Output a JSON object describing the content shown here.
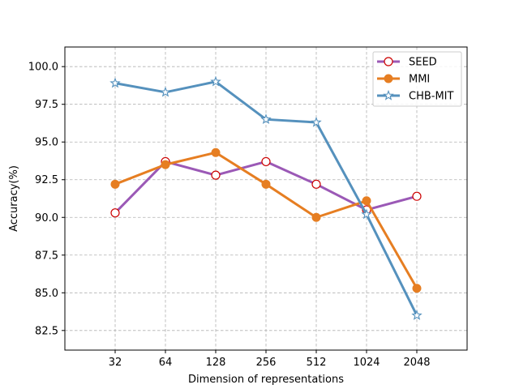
{
  "chart_data": {
    "type": "line",
    "title": "",
    "xlabel": "Dimension of representations",
    "ylabel": "Accuracy(%)",
    "categories": [
      "32",
      "64",
      "128",
      "256",
      "512",
      "1024",
      "2048"
    ],
    "ylim": [
      81.2,
      101.3
    ],
    "yticks": [
      "82.5",
      "85.0",
      "87.5",
      "90.0",
      "92.5",
      "95.0",
      "97.5",
      "100.0"
    ],
    "grid": true,
    "legend_position": "top-right",
    "series": [
      {
        "name": "SEED",
        "values": [
          90.3,
          93.7,
          92.8,
          93.7,
          92.2,
          90.5,
          91.4
        ],
        "color": "#9b59b6",
        "marker": "circle-open",
        "marker_edge": "#cc0000"
      },
      {
        "name": "MMI",
        "values": [
          92.2,
          93.5,
          94.3,
          92.2,
          90.0,
          91.1,
          85.3
        ],
        "color": "#e67e22",
        "marker": "circle-filled",
        "marker_edge": "#e67e22"
      },
      {
        "name": "CHB-MIT",
        "values": [
          98.9,
          98.3,
          99.0,
          96.5,
          96.3,
          90.2,
          83.5
        ],
        "color": "#5591bd",
        "marker": "star-open",
        "marker_edge": "#5591bd"
      }
    ]
  }
}
